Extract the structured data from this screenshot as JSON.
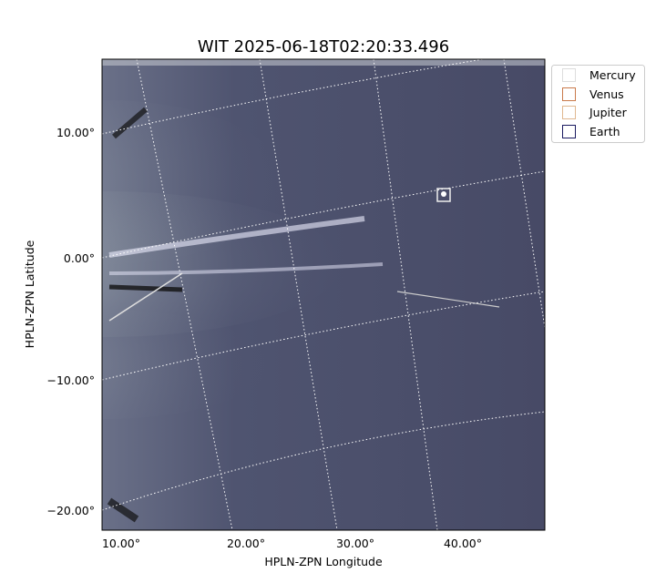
{
  "chart_data": {
    "type": "heatmap",
    "title": "WIT 2025-06-18T02:20:33.496",
    "xlabel": "HPLN-ZPN Longitude",
    "ylabel": "HPLN-ZPN Latitude",
    "x_ticks": [
      "10.00°",
      "20.00°",
      "30.00°",
      "40.00°"
    ],
    "y_ticks": [
      "10.00°",
      "0.00°",
      "−10.00°",
      "−20.00°"
    ],
    "grid": true,
    "colormap": "bone",
    "legend": {
      "placement": "upper-right-outside",
      "entries": [
        {
          "name": "Mercury",
          "color": "#d8d8d8"
        },
        {
          "name": "Venus",
          "color": "#c97a4a"
        },
        {
          "name": "Jupiter",
          "color": "#f5a623"
        },
        {
          "name": "Earth",
          "color": "#1515e0"
        }
      ]
    },
    "markers": [
      {
        "name": "Earth",
        "lon": 38.2,
        "lat": 4.9
      }
    ]
  }
}
